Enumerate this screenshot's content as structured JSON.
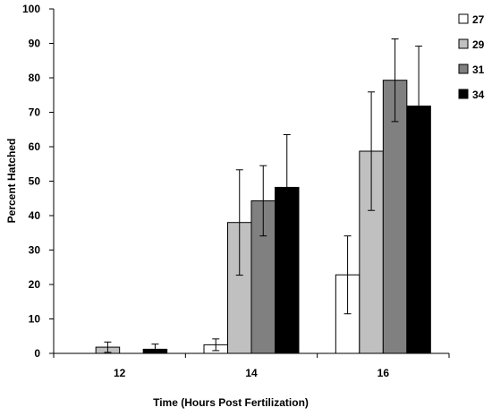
{
  "chart_data": {
    "type": "bar",
    "categories": [
      "12",
      "14",
      "16"
    ],
    "series": [
      {
        "name": "27",
        "color": "#ffffff",
        "values": [
          0,
          2.5,
          22.8
        ],
        "errors": [
          0,
          1.7,
          11.3
        ]
      },
      {
        "name": "29",
        "color": "#c0c0c0",
        "values": [
          1.8,
          38.0,
          58.7
        ],
        "errors": [
          1.5,
          15.3,
          17.2
        ]
      },
      {
        "name": "31",
        "color": "#808080",
        "values": [
          0,
          44.3,
          79.3
        ],
        "errors": [
          0,
          10.2,
          12.0
        ]
      },
      {
        "name": "34",
        "color": "#000000",
        "values": [
          1.2,
          48.2,
          71.8
        ],
        "errors": [
          1.5,
          15.3,
          17.4
        ]
      }
    ],
    "xlabel": "Time (Hours Post Fertilization)",
    "ylabel": "Percent Hatched",
    "ylim": [
      0,
      100
    ],
    "yticks": [
      0,
      10,
      20,
      30,
      40,
      50,
      60,
      70,
      80,
      90,
      100
    ],
    "grid": false,
    "legend_position": "top-right"
  }
}
